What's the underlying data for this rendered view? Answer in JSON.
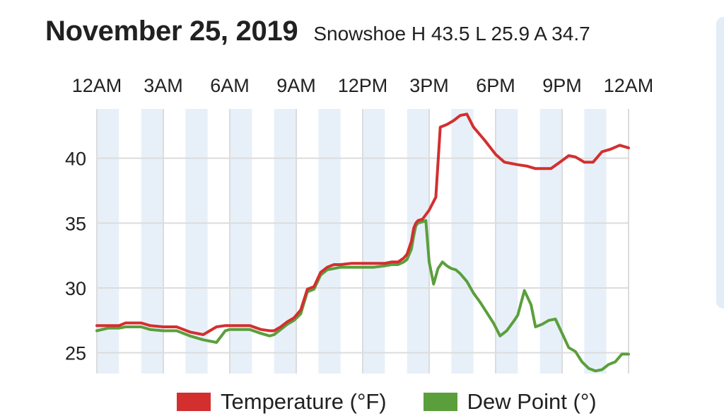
{
  "header": {
    "date": "November 25, 2019",
    "station": "Snowshoe",
    "high_label": "H",
    "high": "43.5",
    "low_label": "L",
    "low": "25.9",
    "avg_label": "A",
    "avg": "34.7"
  },
  "chart_data": {
    "type": "line",
    "title": "November 25, 2019",
    "x_ticks": [
      "12AM",
      "3AM",
      "6AM",
      "9AM",
      "12PM",
      "3PM",
      "6PM",
      "9PM",
      "12AM"
    ],
    "x_unit": "hours",
    "xlim": [
      0,
      24
    ],
    "ylim": [
      23.4,
      43.8
    ],
    "y_ticks": [
      25,
      30,
      35,
      40
    ],
    "grid": true,
    "legend_position": "bottom",
    "series": [
      {
        "name": "Temperature (°F)",
        "color": "#d32f2f",
        "x": [
          0.0,
          0.5,
          1.0,
          1.3,
          1.7,
          2.0,
          2.4,
          3.0,
          3.6,
          4.2,
          4.8,
          5.4,
          5.8,
          6.0,
          6.4,
          6.9,
          7.4,
          7.8,
          8.0,
          8.3,
          8.6,
          8.9,
          9.2,
          9.5,
          9.8,
          10.1,
          10.4,
          10.7,
          11.0,
          11.5,
          12.0,
          12.5,
          13.0,
          13.3,
          13.6,
          13.85,
          14.0,
          14.2,
          14.3,
          14.4,
          14.5,
          14.7,
          15.0,
          15.3,
          15.5,
          15.8,
          16.1,
          16.4,
          16.7,
          17.0,
          17.5,
          18.0,
          18.4,
          18.7,
          19.0,
          19.4,
          19.8,
          20.2,
          20.5,
          20.9,
          21.3,
          21.6,
          22.0,
          22.4,
          22.8,
          23.2,
          23.6,
          24.0
        ],
        "values": [
          27.1,
          27.1,
          27.1,
          27.3,
          27.3,
          27.3,
          27.1,
          27.0,
          27.0,
          26.6,
          26.4,
          27.0,
          27.1,
          27.1,
          27.1,
          27.1,
          26.8,
          26.7,
          26.7,
          27.0,
          27.4,
          27.7,
          28.3,
          29.9,
          30.1,
          31.2,
          31.6,
          31.8,
          31.8,
          31.9,
          31.9,
          31.9,
          31.9,
          32.0,
          32.0,
          32.3,
          32.6,
          33.6,
          34.6,
          35.0,
          35.2,
          35.3,
          36.0,
          37.0,
          42.4,
          42.6,
          42.9,
          43.3,
          43.4,
          42.4,
          41.4,
          40.3,
          39.7,
          39.6,
          39.5,
          39.4,
          39.2,
          39.2,
          39.2,
          39.7,
          40.2,
          40.1,
          39.7,
          39.7,
          40.5,
          40.7,
          41.0,
          40.8
        ]
      },
      {
        "name": "Dew Point (°)",
        "color": "#5a9f3c",
        "x": [
          0.0,
          0.5,
          1.0,
          1.3,
          1.7,
          2.0,
          2.4,
          3.0,
          3.6,
          4.2,
          4.8,
          5.4,
          5.8,
          6.0,
          6.4,
          6.9,
          7.4,
          7.8,
          8.0,
          8.3,
          8.6,
          8.9,
          9.2,
          9.5,
          9.8,
          10.1,
          10.4,
          10.7,
          11.0,
          11.5,
          12.0,
          12.5,
          13.0,
          13.3,
          13.6,
          13.85,
          14.0,
          14.2,
          14.3,
          14.4,
          14.5,
          14.7,
          14.85,
          15.0,
          15.2,
          15.4,
          15.6,
          15.8,
          16.0,
          16.2,
          16.4,
          16.7,
          17.0,
          17.3,
          17.6,
          17.9,
          18.2,
          18.5,
          18.8,
          19.0,
          19.3,
          19.6,
          19.8,
          20.1,
          20.4,
          20.7,
          21.0,
          21.3,
          21.6,
          21.9,
          22.2,
          22.5,
          22.8,
          23.1,
          23.4,
          23.7,
          24.0
        ],
        "values": [
          26.7,
          26.9,
          26.9,
          27.0,
          27.0,
          27.0,
          26.8,
          26.7,
          26.7,
          26.3,
          26.0,
          25.8,
          26.7,
          26.8,
          26.8,
          26.8,
          26.5,
          26.3,
          26.4,
          26.8,
          27.2,
          27.5,
          28.0,
          29.7,
          29.9,
          31.0,
          31.4,
          31.5,
          31.6,
          31.6,
          31.6,
          31.6,
          31.7,
          31.8,
          31.8,
          32.0,
          32.2,
          33.0,
          34.0,
          34.8,
          35.0,
          35.1,
          35.2,
          32.0,
          30.3,
          31.5,
          32.0,
          31.7,
          31.5,
          31.4,
          31.1,
          30.5,
          29.6,
          28.9,
          28.1,
          27.3,
          26.3,
          26.7,
          27.4,
          27.9,
          29.8,
          28.7,
          27.0,
          27.2,
          27.5,
          27.6,
          26.5,
          25.4,
          25.1,
          24.3,
          23.8,
          23.6,
          23.7,
          24.1,
          24.3,
          24.9,
          24.9
        ]
      }
    ]
  }
}
